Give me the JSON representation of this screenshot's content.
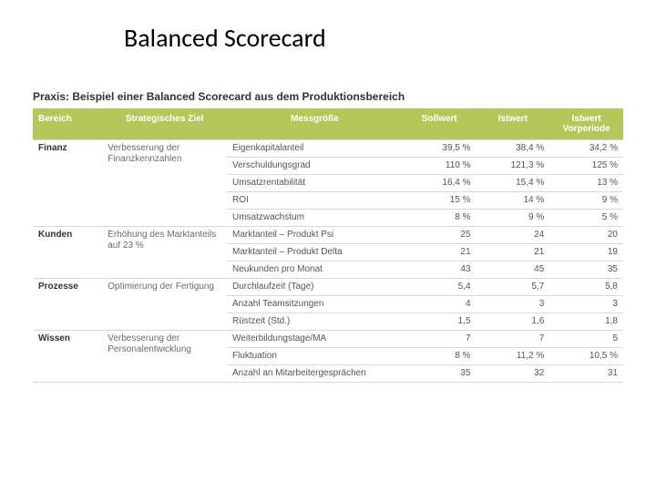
{
  "title": "Balanced Scorecard",
  "caption": "Praxis: Beispiel einer Balanced Scorecard aus dem Produktionsbereich",
  "table": {
    "type": "table",
    "header_bg": "#b6c65a",
    "header_fg": "#ffffff",
    "grid_color": "#d9d9d9",
    "font_size": 10,
    "columns": [
      {
        "key": "bereich",
        "label": "Bereich",
        "align": "left"
      },
      {
        "key": "ziel",
        "label": "Strategisches Ziel",
        "align": "left"
      },
      {
        "key": "mess",
        "label": "Messgröße",
        "align": "left"
      },
      {
        "key": "soll",
        "label": "Sollwert",
        "align": "right"
      },
      {
        "key": "ist",
        "label": "Istwert",
        "align": "right"
      },
      {
        "key": "vor",
        "label": "Istwert Vorperiode",
        "align": "right"
      }
    ],
    "groups": [
      {
        "bereich": "Finanz",
        "ziel": "Verbesserung der Finanzkennzahlen",
        "rows": [
          {
            "mess": "Eigenkapitalanteil",
            "soll": "39,5 %",
            "ist": "38,4 %",
            "vor": "34,2 %"
          },
          {
            "mess": "Verschuldungsgrad",
            "soll": "110 %",
            "ist": "121,3 %",
            "vor": "125 %"
          },
          {
            "mess": "Umsatzrentabilität",
            "soll": "16,4 %",
            "ist": "15,4 %",
            "vor": "13 %"
          },
          {
            "mess": "ROI",
            "soll": "15 %",
            "ist": "14 %",
            "vor": "9 %"
          },
          {
            "mess": "Umsatzwachstum",
            "soll": "8 %",
            "ist": "9 %",
            "vor": "5 %"
          }
        ]
      },
      {
        "bereich": "Kunden",
        "ziel": "Erhöhung des Marktanteils auf 23 %",
        "rows": [
          {
            "mess": "Marktanteil – Produkt Psi",
            "soll": "25",
            "ist": "24",
            "vor": "20"
          },
          {
            "mess": "Marktanteil – Produkt Delta",
            "soll": "21",
            "ist": "21",
            "vor": "19"
          },
          {
            "mess": "Neukunden pro Monat",
            "soll": "43",
            "ist": "45",
            "vor": "35"
          }
        ]
      },
      {
        "bereich": "Prozesse",
        "ziel": "Optimierung der Fertigung",
        "rows": [
          {
            "mess": "Durchlaufzeit (Tage)",
            "soll": "5,4",
            "ist": "5,7",
            "vor": "5,8"
          },
          {
            "mess": "Anzahl Teamsitzungen",
            "soll": "4",
            "ist": "3",
            "vor": "3"
          },
          {
            "mess": "Rüstzeit (Std.)",
            "soll": "1,5",
            "ist": "1,6",
            "vor": "1,8"
          }
        ]
      },
      {
        "bereich": "Wissen",
        "ziel": "Verbesserung der Personalentwicklung",
        "rows": [
          {
            "mess": "Weiterbildungstage/MA",
            "soll": "7",
            "ist": "7",
            "vor": "5"
          },
          {
            "mess": "Fluktuation",
            "soll": "8 %",
            "ist": "11,2 %",
            "vor": "10,5 %"
          },
          {
            "mess": "Anzahl an Mitarbeitergesprächen",
            "soll": "35",
            "ist": "32",
            "vor": "31"
          }
        ]
      }
    ]
  }
}
